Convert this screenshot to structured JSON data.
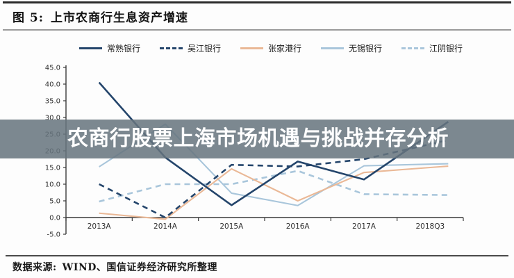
{
  "figure": {
    "label": "图 5:",
    "title": "上市农商行生息资产增速"
  },
  "overlay": {
    "text": "农商行股票上海市场机遇与挑战并存分析"
  },
  "source": {
    "prefix": "数据来源:",
    "text": "WIND、国信证券经济研究所整理"
  },
  "chart_data": {
    "type": "line",
    "title": "上市农商行生息资产增速",
    "categories": [
      "2013A",
      "2014A",
      "2015A",
      "2016A",
      "2017A",
      "2018Q3"
    ],
    "series": [
      {
        "name": "常熟银行",
        "color": "#24456b",
        "style": "solid",
        "values": [
          40.5,
          18.0,
          3.7,
          16.8,
          11.4,
          25.0
        ]
      },
      {
        "name": "吴江银行",
        "color": "#24456b",
        "style": "dashed",
        "values": [
          10.0,
          0.0,
          15.8,
          15.3,
          17.5,
          22.0
        ]
      },
      {
        "name": "张家港行",
        "color": "#eab896",
        "style": "solid",
        "values": [
          1.3,
          -0.5,
          14.6,
          5.0,
          13.5,
          15.0
        ]
      },
      {
        "name": "无锡银行",
        "color": "#a9c6db",
        "style": "solid",
        "values": [
          15.2,
          28.0,
          7.3,
          3.6,
          15.5,
          16.0
        ]
      },
      {
        "name": "江阴银行",
        "color": "#a9c6db",
        "style": "dashed",
        "values": [
          4.8,
          10.0,
          10.0,
          14.0,
          7.0,
          6.8
        ]
      }
    ],
    "ylim": [
      -5.0,
      45.0
    ],
    "ytick_step": 5.0,
    "ytick_format_decimals": 1,
    "grid": false,
    "legend_position": "top",
    "xlabel": "",
    "ylabel": "",
    "axis_color": "#3a3a3a",
    "tick_label_color": "#2f2f2f"
  }
}
